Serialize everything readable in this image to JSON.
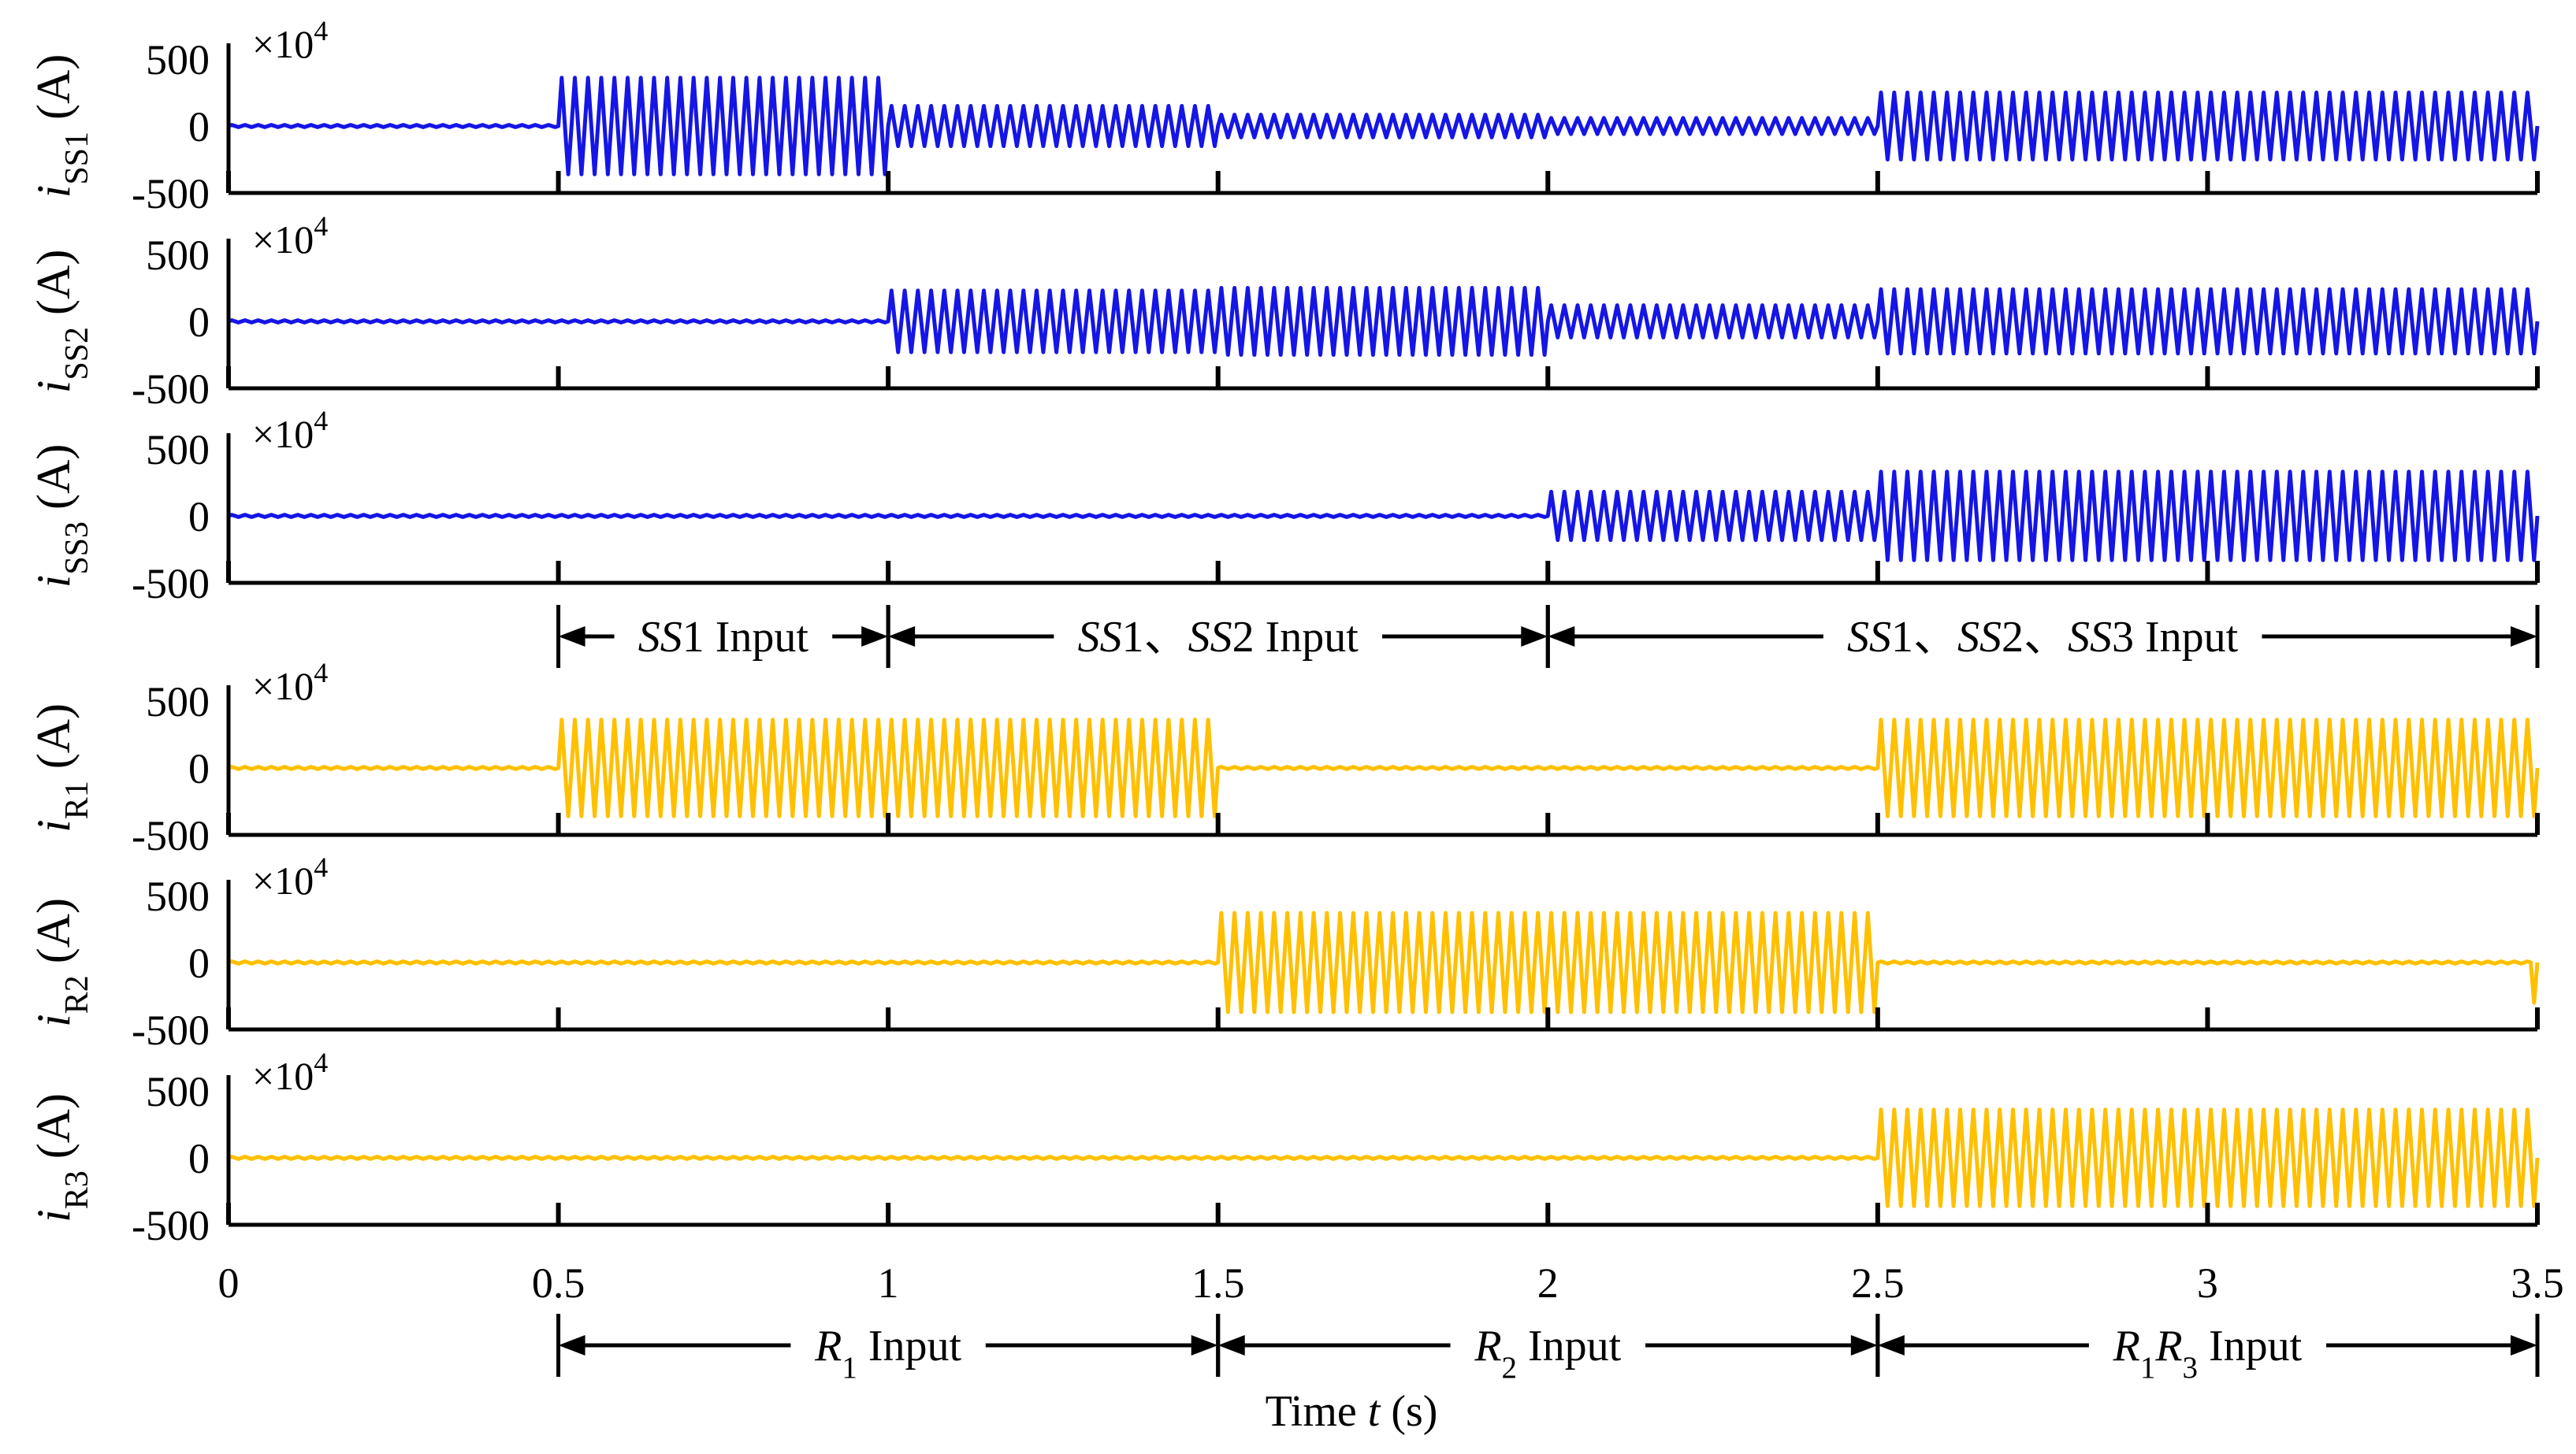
{
  "chart_data": {
    "type": "line",
    "x_label": "Time t (s)",
    "x_label_parts": {
      "prefix": "Time ",
      "var": "t",
      "suffix": " (s)"
    },
    "xlim": [
      0,
      3.5
    ],
    "x_ticks": [
      0,
      0.5,
      1,
      1.5,
      2,
      2.5,
      3,
      3.5
    ],
    "x_tick_labels": [
      "0",
      "0.5",
      "1",
      "1.5",
      "2",
      "2.5",
      "3",
      "3.5"
    ],
    "ylim": [
      -500,
      500
    ],
    "y_ticks": [
      500,
      0,
      -500
    ],
    "y_tick_labels": [
      "500",
      "0",
      "-500"
    ],
    "exponent_label": "×10",
    "exponent_power": "4",
    "colors": {
      "ss": "#1515e6",
      "r": "#ffc000",
      "axis": "#000000"
    },
    "oscillation_frequency_hz": 50,
    "panels": [
      {
        "name": "i_SS1",
        "ylabel_var": "i",
        "ylabel_sub": "SS1",
        "ylabel_unit": "(A)",
        "color": "ss",
        "segments": [
          {
            "t0": 0.0,
            "t1": 0.5,
            "amplitude": 8
          },
          {
            "t0": 0.5,
            "t1": 1.0,
            "amplitude": 360
          },
          {
            "t0": 1.0,
            "t1": 1.5,
            "amplitude": 150
          },
          {
            "t0": 1.5,
            "t1": 2.0,
            "amplitude": 85
          },
          {
            "t0": 2.0,
            "t1": 2.5,
            "amplitude": 60
          },
          {
            "t0": 2.5,
            "t1": 3.5,
            "amplitude": 250
          }
        ]
      },
      {
        "name": "i_SS2",
        "ylabel_var": "i",
        "ylabel_sub": "SS2",
        "ylabel_unit": "(A)",
        "color": "ss",
        "segments": [
          {
            "t0": 0.0,
            "t1": 1.0,
            "amplitude": 8
          },
          {
            "t0": 1.0,
            "t1": 1.5,
            "amplitude": 230
          },
          {
            "t0": 1.5,
            "t1": 2.0,
            "amplitude": 250
          },
          {
            "t0": 2.0,
            "t1": 2.5,
            "amplitude": 120
          },
          {
            "t0": 2.5,
            "t1": 3.5,
            "amplitude": 240
          }
        ]
      },
      {
        "name": "i_SS3",
        "ylabel_var": "i",
        "ylabel_sub": "SS3",
        "ylabel_unit": "(A)",
        "color": "ss",
        "segments": [
          {
            "t0": 0.0,
            "t1": 2.0,
            "amplitude": 8
          },
          {
            "t0": 2.0,
            "t1": 2.5,
            "amplitude": 180
          },
          {
            "t0": 2.5,
            "t1": 3.5,
            "amplitude": 330
          }
        ]
      },
      {
        "name": "i_R1",
        "ylabel_var": "i",
        "ylabel_sub": "R1",
        "ylabel_unit": "(A)",
        "color": "r",
        "segments": [
          {
            "t0": 0.0,
            "t1": 0.5,
            "amplitude": 8
          },
          {
            "t0": 0.5,
            "t1": 1.5,
            "amplitude": 360
          },
          {
            "t0": 1.5,
            "t1": 2.5,
            "amplitude": 8
          },
          {
            "t0": 2.5,
            "t1": 3.5,
            "amplitude": 360
          }
        ]
      },
      {
        "name": "i_R2",
        "ylabel_var": "i",
        "ylabel_sub": "R2",
        "ylabel_unit": "(A)",
        "color": "r",
        "segments": [
          {
            "t0": 0.0,
            "t1": 1.5,
            "amplitude": 8
          },
          {
            "t0": 1.5,
            "t1": 2.5,
            "amplitude": 370
          },
          {
            "t0": 2.5,
            "t1": 3.49,
            "amplitude": 8
          },
          {
            "t0": 3.49,
            "t1": 3.5,
            "amplitude": 300
          }
        ]
      },
      {
        "name": "i_R3",
        "ylabel_var": "i",
        "ylabel_sub": "R3",
        "ylabel_unit": "(A)",
        "color": "r",
        "segments": [
          {
            "t0": 0.0,
            "t1": 2.5,
            "amplitude": 8
          },
          {
            "t0": 2.5,
            "t1": 3.5,
            "amplitude": 360
          }
        ]
      }
    ],
    "annotations": {
      "ss_intervals": [
        {
          "t0": 0.5,
          "t1": 1.0,
          "label": [
            {
              "text": "SS",
              "italic": true
            },
            {
              "text": "1 Input"
            }
          ]
        },
        {
          "t0": 1.0,
          "t1": 2.0,
          "label": [
            {
              "text": "SS",
              "italic": true
            },
            {
              "text": "1、"
            },
            {
              "text": "SS",
              "italic": true
            },
            {
              "text": "2  Input"
            }
          ]
        },
        {
          "t0": 2.0,
          "t1": 3.5,
          "label": [
            {
              "text": "SS",
              "italic": true
            },
            {
              "text": "1、"
            },
            {
              "text": "SS",
              "italic": true
            },
            {
              "text": "2、"
            },
            {
              "text": "SS",
              "italic": true
            },
            {
              "text": "3  Input"
            }
          ]
        }
      ],
      "r_intervals": [
        {
          "t0": 0.5,
          "t1": 1.5,
          "label": [
            {
              "text": "R",
              "italic": true
            },
            {
              "text": "1",
              "sub": true
            },
            {
              "text": " Input"
            }
          ]
        },
        {
          "t0": 1.5,
          "t1": 2.5,
          "label": [
            {
              "text": "R",
              "italic": true
            },
            {
              "text": "2",
              "sub": true
            },
            {
              "text": "  Input"
            }
          ]
        },
        {
          "t0": 2.5,
          "t1": 3.5,
          "label": [
            {
              "text": "R",
              "italic": true
            },
            {
              "text": "1",
              "sub": true
            },
            {
              "text": "R",
              "italic": true
            },
            {
              "text": "3",
              "sub": true
            },
            {
              "text": "  Input"
            }
          ]
        }
      ]
    }
  }
}
